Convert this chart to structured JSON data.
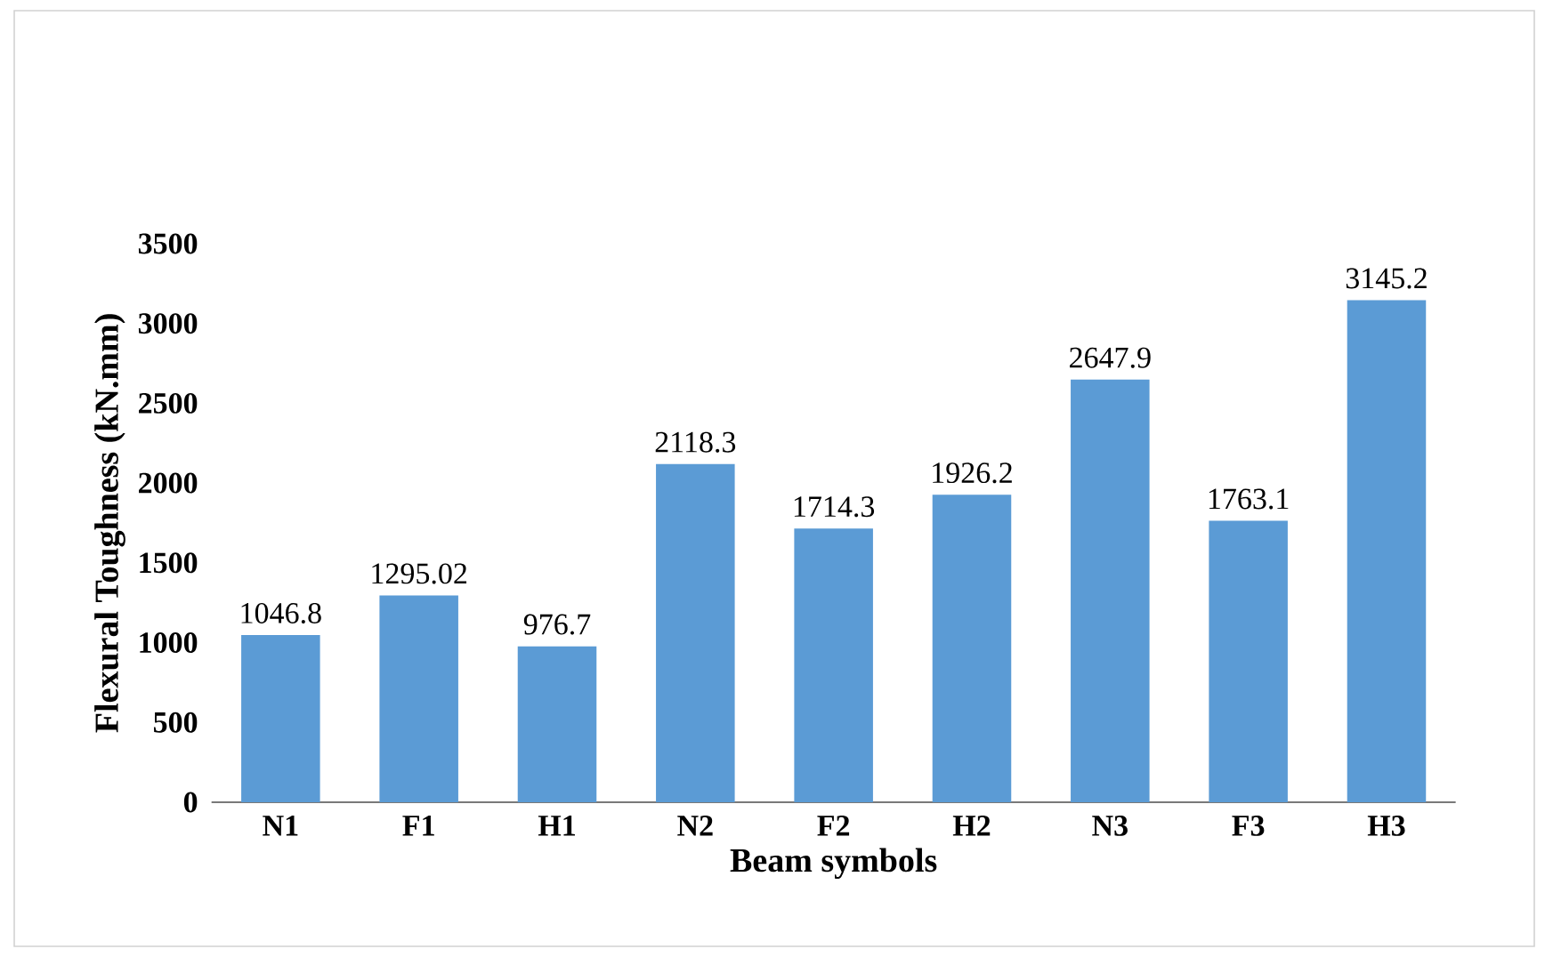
{
  "chart_data": {
    "type": "bar",
    "xlabel": "Beam symbols",
    "ylabel": "Flexural Toughness (kN.mm)",
    "categories": [
      "N1",
      "F1",
      "H1",
      "N2",
      "F2",
      "H2",
      "N3",
      "F3",
      "H3"
    ],
    "values": [
      1046.8,
      1295.02,
      976.7,
      2118.3,
      1714.3,
      1926.2,
      2647.9,
      1763.1,
      3145.2
    ],
    "color": "#5b9bd5",
    "ylim": [
      0,
      3500
    ],
    "yticks": [
      0,
      500,
      1000,
      1500,
      2000,
      2500,
      3000,
      3500
    ],
    "data_labels": true
  }
}
